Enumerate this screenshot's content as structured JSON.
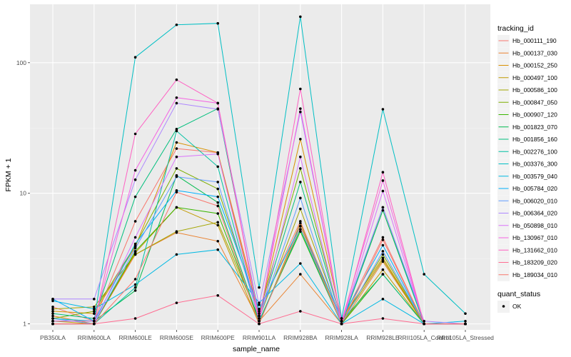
{
  "chart_data": {
    "type": "line",
    "xlabel": "sample_name",
    "ylabel": "FPKM + 1",
    "y_scale": "log10",
    "ylim": [
      0.9,
      280
    ],
    "y_ticks": [
      1,
      10,
      100
    ],
    "y_tick_labels": [
      "1",
      "10",
      "100"
    ],
    "grid": true,
    "legend_position": "right",
    "categories": [
      "PB350LA",
      "RRIM600LA",
      "RRIM600LE",
      "RRIM600SE",
      "RRIM600PE",
      "RRIM901LA",
      "RRIM928BA",
      "RRIM928LA",
      "RRIM928LE",
      "RRII105LA_Control",
      "RRII105LA_Stressed"
    ],
    "legend_title": "tracking_id",
    "series": [
      {
        "name": "Hb_000111_190",
        "color": "#F8766D",
        "values": [
          1.35,
          1.05,
          6.1,
          22,
          20.5,
          1.25,
          6.1,
          1.05,
          4.6,
          1.0,
          1.0
        ]
      },
      {
        "name": "Hb_000137_030",
        "color": "#EA8331",
        "values": [
          1.15,
          1.0,
          3.4,
          5.0,
          4.3,
          1.05,
          2.4,
          1.0,
          3.0,
          1.0,
          1.0
        ]
      },
      {
        "name": "Hb_000152_250",
        "color": "#D89000",
        "values": [
          1.25,
          1.2,
          3.9,
          24.5,
          20.5,
          1.15,
          26,
          1.1,
          3.2,
          1.0,
          1.0
        ]
      },
      {
        "name": "Hb_000497_100",
        "color": "#C09B00",
        "values": [
          1.05,
          1.0,
          3.5,
          7.8,
          5.7,
          1.0,
          5.9,
          1.0,
          2.6,
          1.0,
          1.0
        ]
      },
      {
        "name": "Hb_000586_100",
        "color": "#A3A500",
        "values": [
          1.3,
          1.35,
          3.4,
          5.1,
          6.0,
          1.1,
          7.6,
          1.05,
          3.1,
          1.0,
          1.0
        ]
      },
      {
        "name": "Hb_000847_050",
        "color": "#7CAE00",
        "values": [
          1.1,
          1.25,
          4.0,
          15.5,
          10.8,
          1.2,
          15.5,
          1.05,
          3.4,
          1.0,
          1.0
        ]
      },
      {
        "name": "Hb_000907_120",
        "color": "#39B600",
        "values": [
          1.0,
          1.0,
          3.6,
          7.8,
          7.0,
          1.05,
          5.1,
          1.0,
          2.4,
          1.0,
          1.0
        ]
      },
      {
        "name": "Hb_001823_070",
        "color": "#00BB4E",
        "values": [
          1.05,
          1.05,
          1.8,
          13.7,
          8.5,
          1.05,
          5.3,
          1.0,
          7.4,
          1.0,
          1.0
        ]
      },
      {
        "name": "Hb_001856_160",
        "color": "#00BF7D",
        "values": [
          1.2,
          1.1,
          9.4,
          31,
          44.5,
          1.15,
          12.2,
          1.05,
          2.4,
          1.0,
          1.0
        ]
      },
      {
        "name": "Hb_002276_100",
        "color": "#00C1A3",
        "values": [
          1.0,
          1.0,
          1.9,
          30,
          16,
          1.05,
          5.3,
          1.0,
          7.8,
          1.0,
          1.0
        ]
      },
      {
        "name": "Hb_003376_300",
        "color": "#00BFC4",
        "values": [
          1.1,
          1.05,
          110,
          195,
          200,
          1.9,
          225,
          1.1,
          44,
          2.4,
          1.2
        ]
      },
      {
        "name": "Hb_003579_040",
        "color": "#00B9E3",
        "values": [
          1.5,
          1.3,
          2.0,
          3.4,
          3.7,
          1.45,
          2.9,
          1.0,
          1.55,
          1.0,
          1.05
        ]
      },
      {
        "name": "Hb_005784_020",
        "color": "#00ADFA",
        "values": [
          1.55,
          1.05,
          4.1,
          10.5,
          9.4,
          1.3,
          5.6,
          1.1,
          4.0,
          1.0,
          1.0
        ]
      },
      {
        "name": "Hb_006020_010",
        "color": "#619CFF",
        "values": [
          1.1,
          1.0,
          3.8,
          13.4,
          12.2,
          1.1,
          9.2,
          1.0,
          3.6,
          1.0,
          1.0
        ]
      },
      {
        "name": "Hb_006364_020",
        "color": "#AE87FF",
        "values": [
          1.55,
          1.55,
          12.7,
          49,
          44,
          1.4,
          42,
          1.05,
          7.8,
          1.05,
          1.0
        ]
      },
      {
        "name": "Hb_050898_010",
        "color": "#DB72FB",
        "values": [
          1.0,
          1.0,
          4.6,
          19,
          20,
          1.05,
          19,
          1.0,
          10.4,
          1.0,
          1.0
        ]
      },
      {
        "name": "Hb_130967_010",
        "color": "#F564E3",
        "values": [
          1.05,
          1.05,
          15,
          54,
          49,
          1.1,
          44.5,
          1.05,
          12.5,
          1.0,
          1.0
        ]
      },
      {
        "name": "Hb_131662_010",
        "color": "#FF61C3",
        "values": [
          1.0,
          1.0,
          28.5,
          74,
          49,
          1.05,
          63,
          1.0,
          14.5,
          1.0,
          1.0
        ]
      },
      {
        "name": "Hb_183209_020",
        "color": "#FF6C91",
        "values": [
          1.0,
          1.0,
          1.1,
          1.45,
          1.65,
          1.0,
          1.25,
          1.0,
          1.1,
          1.0,
          1.0
        ]
      },
      {
        "name": "Hb_189034_010",
        "color": "#F8766D",
        "values": [
          1.0,
          1.0,
          2.2,
          10.2,
          8.0,
          1.0,
          5.6,
          1.0,
          4.4,
          1.0,
          1.0
        ]
      }
    ],
    "legend2_title": "quant_status",
    "legend2_items": [
      "OK"
    ]
  }
}
